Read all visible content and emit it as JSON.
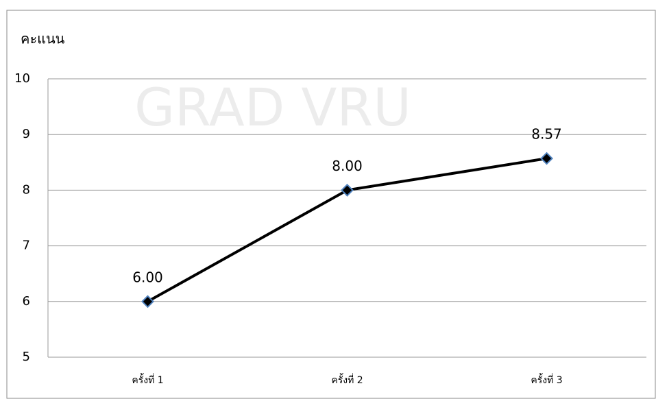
{
  "chart_data": {
    "type": "line",
    "watermark": "GRAD VRU",
    "y_label": "คะแนน",
    "categories": [
      "ครั้งที่ 1",
      "ครั้งที่ 2",
      "ครั้งที่ 3"
    ],
    "series": [
      {
        "color": "#000000",
        "marker_color": "#4f81bd",
        "values": [
          6,
          8,
          8.57
        ],
        "value_labels": [
          "6.00",
          "8.00",
          "8.57"
        ]
      }
    ],
    "ylim": [
      5,
      10
    ],
    "yticks": [
      5,
      6,
      7,
      8,
      9,
      10
    ],
    "grid": true
  }
}
